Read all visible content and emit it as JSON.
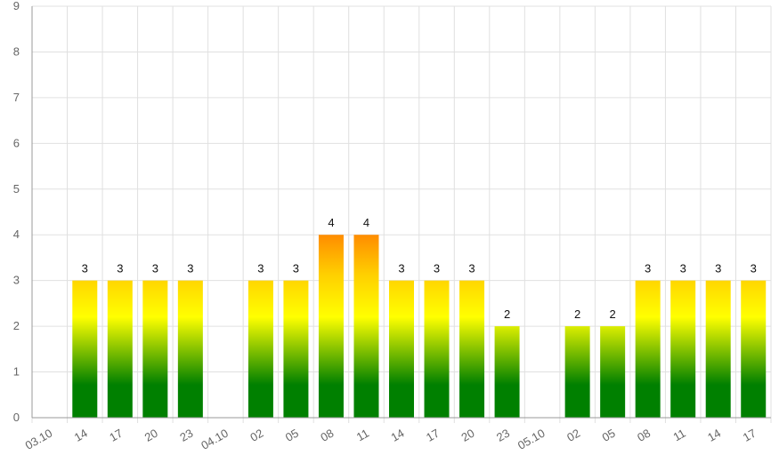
{
  "chart_data": {
    "type": "bar",
    "categories": [
      "03.10",
      "14",
      "17",
      "20",
      "23",
      "04.10",
      "02",
      "05",
      "08",
      "11",
      "14",
      "17",
      "20",
      "23",
      "05.10",
      "02",
      "05",
      "08",
      "11",
      "14",
      "17"
    ],
    "values": [
      null,
      3,
      3,
      3,
      3,
      null,
      3,
      3,
      4,
      4,
      3,
      3,
      3,
      2,
      null,
      2,
      2,
      3,
      3,
      3,
      3
    ],
    "ylim": [
      0,
      9
    ],
    "yticks": [
      0,
      1,
      2,
      3,
      4,
      5,
      6,
      7,
      8,
      9
    ],
    "grid": true,
    "legend": "none",
    "data_labels": true,
    "colors": {
      "bar_bottom": "#008000",
      "bar_middle": "#ffff00",
      "bar_top_at_4": "#ff8c00",
      "grid": "#e0e0e0",
      "axis": "#9a9a9a",
      "tick_text": "#666666"
    }
  }
}
